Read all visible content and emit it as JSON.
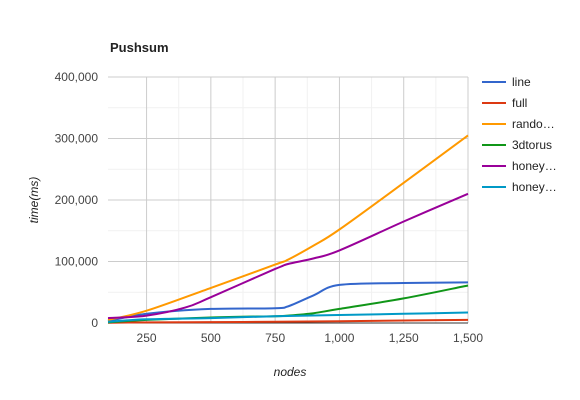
{
  "chart_data": {
    "type": "line",
    "title": "Pushsum",
    "xlabel": "nodes",
    "ylabel": "time(ms)",
    "xlim": [
      100,
      1500
    ],
    "ylim": [
      0,
      400000
    ],
    "x_ticks": [
      250,
      500,
      750,
      1000,
      1250,
      1500
    ],
    "x_tick_labels": [
      "250",
      "500",
      "750",
      "1,000",
      "1,250",
      "1,500"
    ],
    "y_ticks": [
      0,
      100000,
      200000,
      300000,
      400000
    ],
    "y_tick_labels": [
      "0",
      "100,000",
      "200,000",
      "300,000",
      "400,000"
    ],
    "legend_position": "right",
    "series": [
      {
        "name": "line",
        "legend_label": "line",
        "color": "#3366cc",
        "x": [
          100,
          250,
          500,
          750,
          800,
          900,
          1000,
          1250,
          1500
        ],
        "y": [
          3000,
          15000,
          23000,
          24000,
          27000,
          45000,
          62000,
          65000,
          66000
        ]
      },
      {
        "name": "full",
        "legend_label": "full",
        "color": "#dc3912",
        "x": [
          100,
          250,
          500,
          750,
          1000,
          1250,
          1500
        ],
        "y": [
          500,
          1000,
          1500,
          2000,
          3000,
          4000,
          5000
        ]
      },
      {
        "name": "random",
        "legend_label": "rando…",
        "color": "#ff9900",
        "x": [
          100,
          250,
          500,
          750,
          800,
          900,
          1000,
          1250,
          1500
        ],
        "y": [
          5000,
          20000,
          57000,
          95000,
          103000,
          126000,
          152000,
          228000,
          305000
        ]
      },
      {
        "name": "3dtorus",
        "legend_label": "3dtorus",
        "color": "#109618",
        "x": [
          100,
          250,
          500,
          750,
          800,
          900,
          1000,
          1250,
          1500
        ],
        "y": [
          1000,
          5000,
          9000,
          11000,
          12000,
          16000,
          23000,
          40000,
          61000
        ]
      },
      {
        "name": "honeycomb",
        "legend_label": "honey…",
        "color": "#990099",
        "x": [
          100,
          250,
          400,
          500,
          750,
          800,
          900,
          1000,
          1250,
          1500
        ],
        "y": [
          8000,
          12000,
          25000,
          42000,
          88000,
          96000,
          105000,
          118000,
          165000,
          210000
        ]
      },
      {
        "name": "honeycomb-random",
        "legend_label": "honey…",
        "color": "#0099c6",
        "x": [
          100,
          250,
          500,
          750,
          1000,
          1250,
          1500
        ],
        "y": [
          2000,
          6000,
          8000,
          11000,
          13000,
          15000,
          17000
        ]
      }
    ]
  }
}
